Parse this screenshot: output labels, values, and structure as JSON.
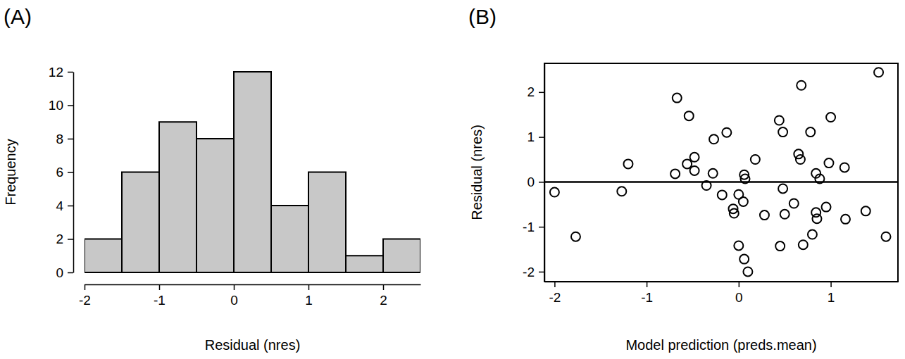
{
  "chart_data": [
    {
      "type": "histogram",
      "title": "(A)",
      "x_label": "Residual (nres)",
      "y_label": "Frequency",
      "bins": [
        -2,
        -1.5,
        -1,
        -0.5,
        0,
        0.5,
        1,
        1.5,
        2,
        2.5
      ],
      "values": [
        2,
        6,
        9,
        8,
        12,
        4,
        6,
        1,
        2
      ],
      "color": "#c8c8c8",
      "xlim": [
        -2,
        2.5
      ],
      "xticks": [
        -2,
        -1,
        0,
        1,
        2
      ],
      "ylim": [
        0,
        12
      ],
      "yticks": [
        0,
        2,
        4,
        6,
        8,
        10,
        12
      ]
    },
    {
      "type": "scatter",
      "title": "(B)",
      "x_label": "Model prediction (preds.mean)",
      "y_label": "Residual (nres)",
      "x": [
        -2.0,
        -1.77,
        -1.27,
        -1.2,
        -0.67,
        -0.54,
        -0.69,
        -0.56,
        -0.48,
        -0.48,
        -0.27,
        -0.13,
        -0.35,
        -0.28,
        -0.18,
        -0.06,
        -0.05,
        0.0,
        0.06,
        0.07,
        0.05,
        0.18,
        0.0,
        0.06,
        0.1,
        0.28,
        0.44,
        0.48,
        0.48,
        0.5,
        0.6,
        0.45,
        0.65,
        0.67,
        0.68,
        0.7,
        0.78,
        0.8,
        0.84,
        0.85,
        0.84,
        0.88,
        0.95,
        0.98,
        1.0,
        1.15,
        1.16,
        1.38,
        1.52,
        1.6
      ],
      "values": [
        -0.23,
        -1.22,
        -0.21,
        0.4,
        1.87,
        1.47,
        0.18,
        0.4,
        0.55,
        0.25,
        0.95,
        1.1,
        -0.08,
        0.19,
        -0.29,
        -0.6,
        -0.7,
        -0.28,
        0.16,
        0.07,
        -0.44,
        0.5,
        -1.42,
        -1.72,
        -2.0,
        -0.74,
        1.37,
        1.11,
        -0.15,
        -0.72,
        -0.48,
        -1.43,
        0.62,
        0.5,
        2.15,
        -1.4,
        1.11,
        -1.17,
        -0.68,
        -0.82,
        0.19,
        0.07,
        -0.56,
        0.42,
        1.44,
        0.32,
        -0.83,
        -0.65,
        2.44,
        -1.22
      ],
      "color": "#000000",
      "marker": "circle",
      "hline": 0,
      "xlim": [
        -2.11,
        1.73
      ],
      "xticks": [
        -2,
        -1,
        0,
        1
      ],
      "ylim": [
        -2.22,
        2.64
      ],
      "yticks": [
        -2,
        -1,
        0,
        1,
        2
      ]
    }
  ]
}
